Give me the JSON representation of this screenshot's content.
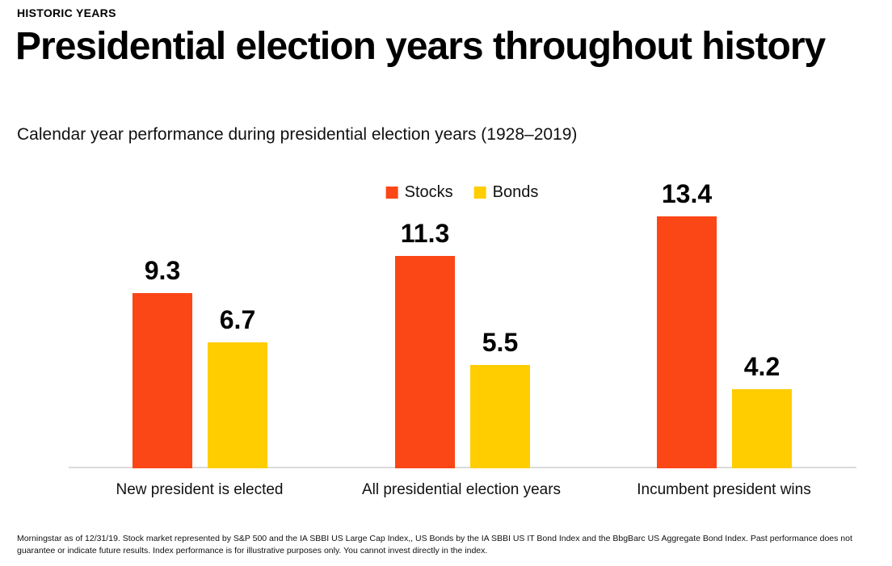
{
  "header": {
    "eyebrow": "HISTORIC YEARS",
    "title": "Presidential election years throughout history",
    "subtitle": "Calendar year performance during presidential election years (1928–2019)"
  },
  "chart_data": {
    "type": "bar",
    "title": "Presidential election years throughout history",
    "subtitle": "Calendar year performance during presidential election years (1928–2019)",
    "categories": [
      "New president is elected",
      "All presidential election years",
      "Incumbent president wins"
    ],
    "series": [
      {
        "name": "Stocks",
        "color": "#FB4616",
        "values": [
          9.3,
          11.3,
          13.4
        ]
      },
      {
        "name": "Bonds",
        "color": "#FFCD00",
        "values": [
          6.7,
          5.5,
          4.2
        ]
      }
    ],
    "value_labels": true,
    "ylim": [
      0,
      14
    ],
    "grid": false,
    "legend_position": "top-center",
    "xlabel": "",
    "ylabel": ""
  },
  "colors": {
    "stocks": "#FB4616",
    "bonds": "#FFCD00",
    "axis_line": "#dbdbdb",
    "text": "#000000"
  },
  "footnote": "Morningstar as of 12/31/19. Stock market represented by S&P 500 and the IA SBBI US Large Cap Index,, US Bonds by the IA SBBI US IT Bond Index and the BbgBarc US Aggregate Bond Index. Past performance does not guarantee or indicate future results. Index performance is for illustrative purposes only. You cannot invest directly in the index."
}
